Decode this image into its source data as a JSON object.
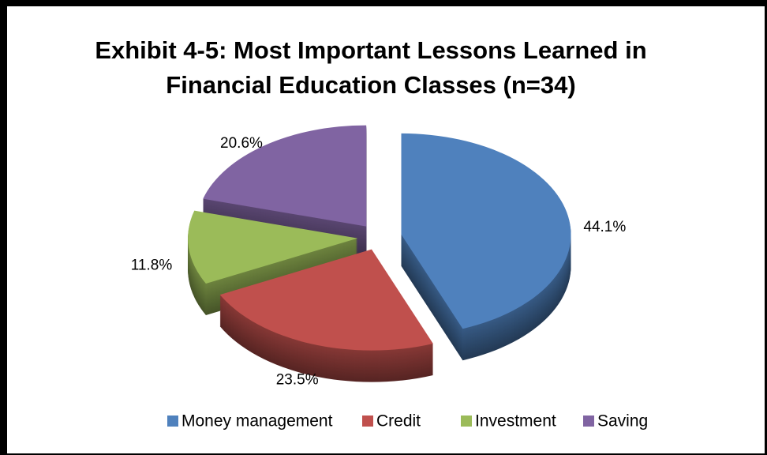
{
  "chart_data": {
    "type": "pie",
    "title": "Exhibit 4-5: Most Important Lessons Learned in Financial Education Classes (n=34)",
    "categories": [
      "Money management",
      "Credit",
      "Investment",
      "Saving"
    ],
    "values": [
      44.1,
      23.5,
      11.8,
      20.6
    ],
    "value_labels": [
      "44.1%",
      "23.5%",
      "11.8%",
      "20.6%"
    ],
    "colors": [
      "#4f81bd",
      "#c0504d",
      "#9bbb59",
      "#8064a2"
    ],
    "legend": "bottom"
  }
}
